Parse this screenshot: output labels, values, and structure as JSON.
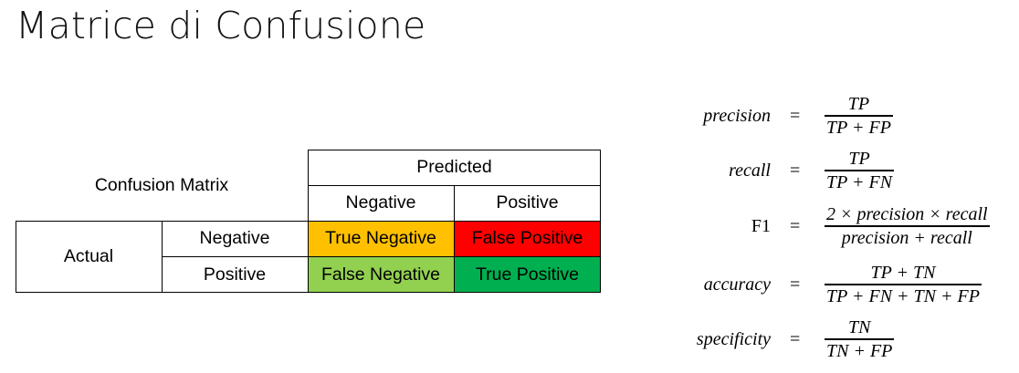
{
  "slide": {
    "title": "Matrice di Confusione"
  },
  "matrix": {
    "corner_label": "Confusion Matrix",
    "predicted_label": "Predicted",
    "actual_label": "Actual",
    "predicted_classes": [
      "Negative",
      "Positive"
    ],
    "actual_classes": [
      "Negative",
      "Positive"
    ],
    "cells": [
      {
        "text": "True Negative",
        "color": "#FFC000"
      },
      {
        "text": "False Positive",
        "color": "#FF0000"
      },
      {
        "text": "False Negative",
        "color": "#92D050"
      },
      {
        "text": "True Positive",
        "color": "#00B050"
      }
    ]
  },
  "formulas": [
    {
      "name": "precision",
      "eq": "=",
      "numerator": "TP",
      "denominator": "TP + FP"
    },
    {
      "name": "recall",
      "eq": "=",
      "numerator": "TP",
      "denominator": "TP + FN"
    },
    {
      "name": "F1",
      "eq": "=",
      "numerator": "2 × precision × recall",
      "denominator": "precision + recall"
    },
    {
      "name": "accuracy",
      "eq": "=",
      "numerator": "TP + TN",
      "denominator": "TP + FN + TN + FP"
    },
    {
      "name": "specificity",
      "eq": "=",
      "numerator": "TN",
      "denominator": "TN + FP"
    }
  ]
}
